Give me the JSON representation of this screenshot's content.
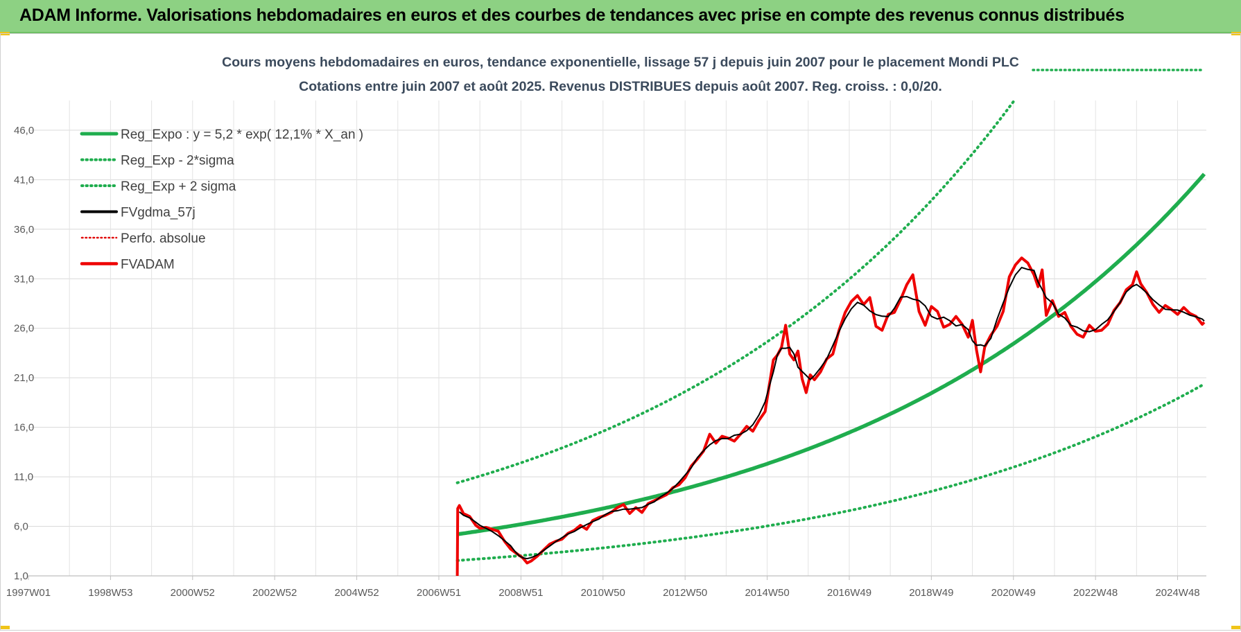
{
  "banner": {
    "title": "ADAM Informe. Valorisations hebdomadaires en euros et des courbes de tendances avec prise en compte des revenus connus distribués"
  },
  "chart_data": {
    "type": "line",
    "title": "Cours moyens hebdomadaires en euros, tendance exponentielle, lissage 57 j depuis juin 2007 pour le placement Mondi PLC",
    "subtitle": "Cotations entre juin 2007 et août 2025. Revenus DISTRIBUES depuis août 2007. Reg. croiss. : 0,0/20.",
    "xlabel": "",
    "ylabel": "",
    "x_tick_labels": [
      "1997W01",
      "1998W53",
      "2000W52",
      "2002W52",
      "2004W52",
      "2006W51",
      "2008W51",
      "2010W50",
      "2012W50",
      "2014W50",
      "2016W49",
      "2018W49",
      "2020W49",
      "2022W48",
      "2024W48"
    ],
    "x_tick_years": [
      1997.0,
      1999.0,
      2001.0,
      2003.0,
      2005.0,
      2007.0,
      2009.0,
      2011.0,
      2013.0,
      2015.0,
      2017.0,
      2019.0,
      2021.0,
      2023.0,
      2025.0
    ],
    "y_tick_labels": [
      "1,0",
      "6,0",
      "11,0",
      "16,0",
      "21,0",
      "26,0",
      "31,0",
      "36,0",
      "41,0",
      "46,0"
    ],
    "ylim": [
      1.0,
      49.0
    ],
    "xlim": [
      1997.0,
      2025.7
    ],
    "grid": true,
    "legend_position": "top-left",
    "colors": {
      "trend": "#1fad4e",
      "band": "#1fad4e",
      "smooth": "#000000",
      "perf": "#e00000",
      "price": "#ee0000"
    },
    "regression": {
      "a": 5.2,
      "growth_pct": 12.1,
      "x0_year": 2007.45,
      "band_upper_factor": 2.0,
      "band_lower_factor": 0.49,
      "end_year": 2025.65
    },
    "series": [
      {
        "name": "Reg_Expo : y = 5,2 * exp( 12,1% *  X_an )",
        "style": "solid",
        "color": "#1fad4e"
      },
      {
        "name": "Reg_Exp - 2*sigma",
        "style": "dotted",
        "color": "#1fad4e"
      },
      {
        "name": "Reg_Exp + 2 sigma",
        "style": "dotted",
        "color": "#1fad4e"
      },
      {
        "name": "FVgdma_57j",
        "style": "solid",
        "color": "#000000"
      },
      {
        "name": "Perfo. absolue",
        "style": "dotted",
        "color": "#e00000"
      },
      {
        "name": "FVADAM",
        "style": "solid",
        "color": "#ee0000",
        "x": [
          2007.45,
          2007.46,
          2007.5,
          2007.6,
          2007.75,
          2007.9,
          2008.0,
          2008.15,
          2008.3,
          2008.45,
          2008.6,
          2008.75,
          2008.85,
          2008.95,
          2009.05,
          2009.15,
          2009.25,
          2009.4,
          2009.55,
          2009.7,
          2009.85,
          2010.0,
          2010.15,
          2010.3,
          2010.45,
          2010.6,
          2010.75,
          2010.9,
          2011.05,
          2011.2,
          2011.35,
          2011.5,
          2011.65,
          2011.8,
          2011.95,
          2012.1,
          2012.25,
          2012.4,
          2012.55,
          2012.7,
          2012.85,
          2013.0,
          2013.15,
          2013.3,
          2013.45,
          2013.6,
          2013.75,
          2013.9,
          2014.05,
          2014.2,
          2014.35,
          2014.5,
          2014.65,
          2014.8,
          2014.95,
          2015.05,
          2015.15,
          2015.25,
          2015.35,
          2015.45,
          2015.55,
          2015.65,
          2015.75,
          2015.85,
          2015.95,
          2016.05,
          2016.15,
          2016.3,
          2016.45,
          2016.6,
          2016.75,
          2016.9,
          2017.05,
          2017.2,
          2017.35,
          2017.5,
          2017.65,
          2017.8,
          2017.95,
          2018.1,
          2018.25,
          2018.4,
          2018.55,
          2018.7,
          2018.85,
          2019.0,
          2019.15,
          2019.3,
          2019.45,
          2019.6,
          2019.75,
          2019.9,
          2020.0,
          2020.1,
          2020.2,
          2020.3,
          2020.45,
          2020.6,
          2020.75,
          2020.9,
          2021.05,
          2021.2,
          2021.35,
          2021.5,
          2021.6,
          2021.7,
          2021.8,
          2021.95,
          2022.1,
          2022.25,
          2022.4,
          2022.55,
          2022.7,
          2022.85,
          2023.0,
          2023.15,
          2023.3,
          2023.45,
          2023.6,
          2023.75,
          2023.9,
          2024.0,
          2024.1,
          2024.25,
          2024.4,
          2024.55,
          2024.7,
          2024.85,
          2025.0,
          2025.15,
          2025.3,
          2025.45,
          2025.6,
          2025.65
        ],
        "y": [
          1.0,
          7.8,
          8.1,
          7.3,
          7.0,
          6.1,
          5.8,
          5.9,
          5.7,
          5.5,
          4.5,
          3.7,
          3.4,
          3.1,
          2.8,
          2.3,
          2.5,
          3.0,
          3.6,
          4.2,
          4.5,
          4.7,
          5.3,
          5.6,
          6.1,
          5.7,
          6.6,
          6.9,
          7.1,
          7.4,
          7.9,
          8.2,
          7.3,
          7.9,
          7.4,
          8.3,
          8.6,
          8.9,
          9.2,
          9.9,
          10.2,
          10.9,
          12.1,
          12.8,
          13.6,
          15.3,
          14.4,
          15.1,
          14.9,
          14.6,
          15.3,
          16.1,
          15.6,
          16.7,
          17.6,
          20.2,
          22.8,
          23.3,
          24.1,
          26.3,
          23.4,
          22.8,
          23.7,
          20.9,
          19.5,
          21.3,
          20.8,
          21.6,
          22.9,
          23.4,
          25.8,
          27.6,
          28.7,
          29.3,
          28.4,
          29.1,
          26.2,
          25.8,
          27.4,
          27.6,
          28.9,
          30.4,
          31.4,
          27.7,
          26.3,
          28.2,
          27.7,
          26.1,
          26.4,
          27.2,
          26.4,
          25.1,
          26.8,
          23.8,
          21.6,
          24.1,
          25.3,
          26.2,
          27.7,
          31.2,
          32.4,
          33.1,
          32.6,
          31.4,
          30.2,
          31.9,
          27.3,
          28.8,
          27.2,
          27.6,
          26.2,
          25.4,
          25.1,
          26.3,
          25.7,
          25.8,
          26.4,
          27.8,
          28.6,
          29.9,
          30.4,
          31.7,
          30.5,
          29.6,
          28.4,
          27.6,
          28.3,
          27.9,
          27.4,
          28.1,
          27.5,
          27.2,
          26.4,
          26.6
        ]
      }
    ]
  }
}
